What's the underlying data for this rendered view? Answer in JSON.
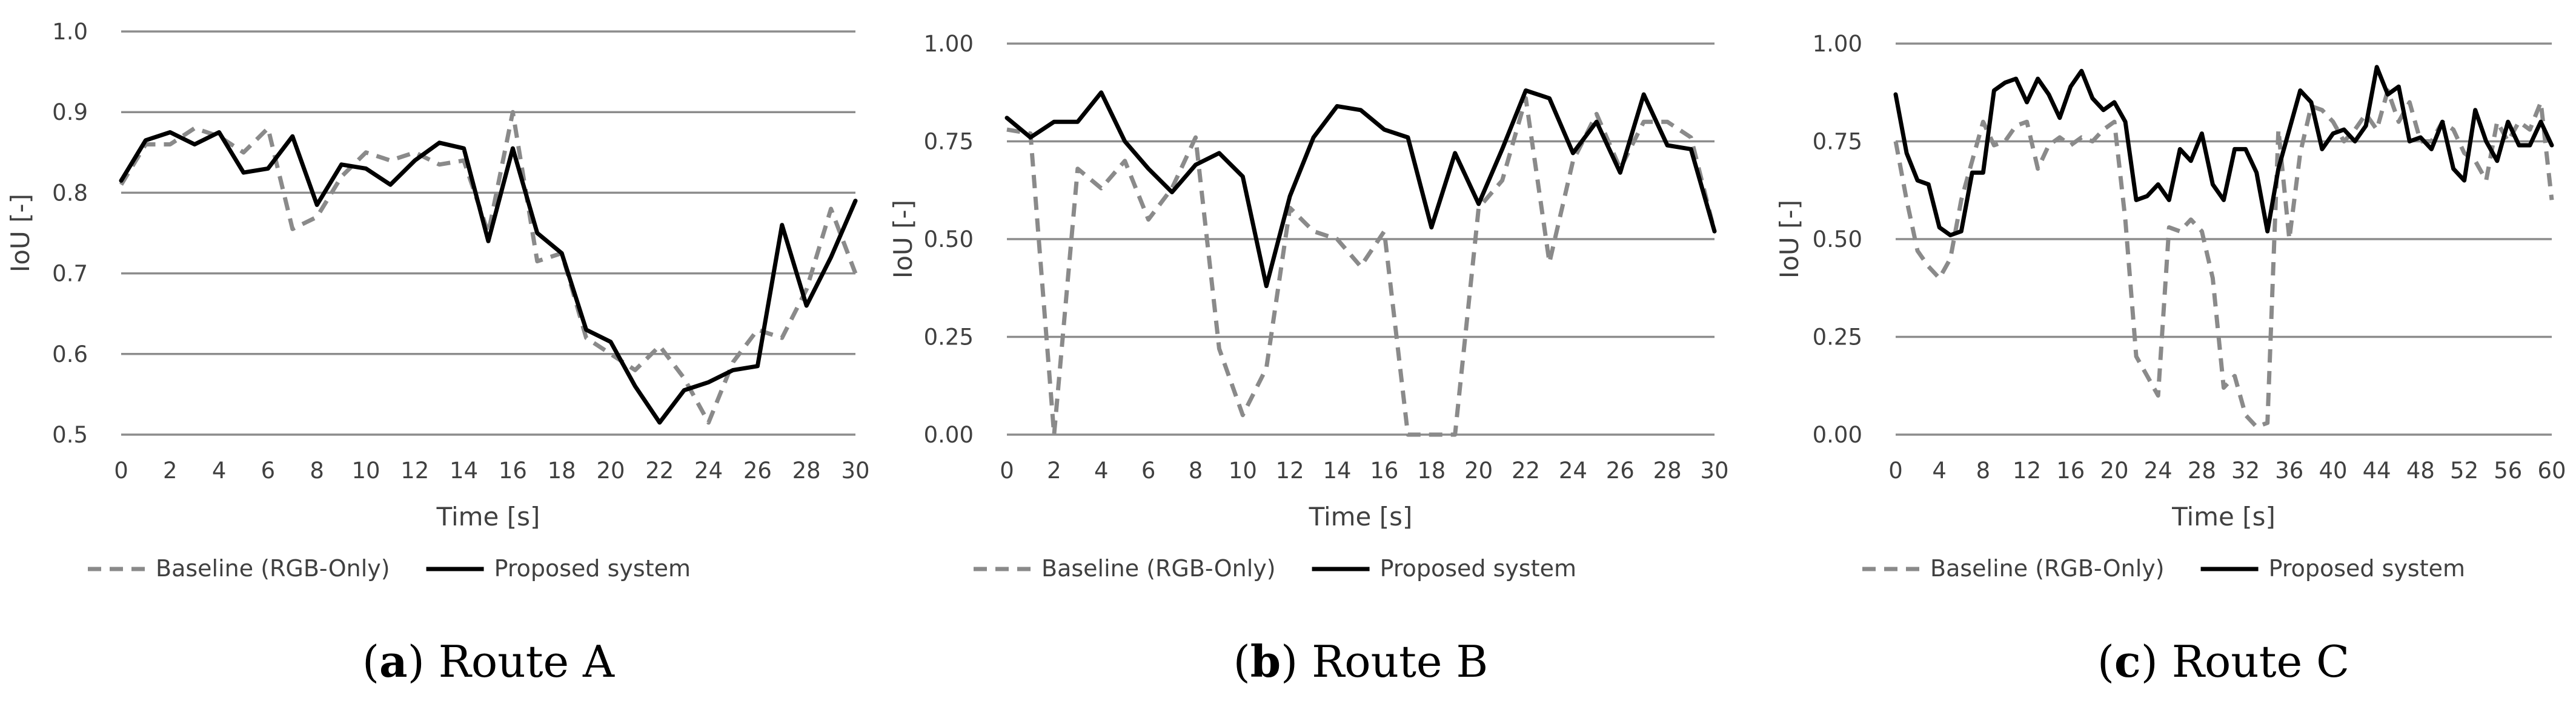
{
  "colors": {
    "baseline": "#8a8a8a",
    "proposed": "#000000",
    "grid": "#8c8c8c",
    "text": "#404040"
  },
  "chart_data": [
    {
      "type": "line",
      "caption_letter": "a",
      "caption_text": ") Route A",
      "caption_open": "(",
      "xlabel": "Time [s]",
      "ylabel": "IoU [-]",
      "xlim": [
        0,
        30
      ],
      "ylim": [
        0.5,
        1.0
      ],
      "yticks": [
        "0.5",
        "0.6",
        "0.7",
        "0.8",
        "0.9",
        "1.0"
      ],
      "ytick_values": [
        0.5,
        0.6,
        0.7,
        0.8,
        0.9,
        1.0
      ],
      "xticks": [
        "0",
        "2",
        "4",
        "6",
        "8",
        "10",
        "12",
        "14",
        "16",
        "18",
        "20",
        "22",
        "24",
        "26",
        "28",
        "30"
      ],
      "xtick_values": [
        0,
        2,
        4,
        6,
        8,
        10,
        12,
        14,
        16,
        18,
        20,
        22,
        24,
        26,
        28,
        30
      ],
      "grid": true,
      "legend_position": "bottom",
      "x": [
        0,
        1,
        2,
        3,
        4,
        5,
        6,
        7,
        8,
        9,
        10,
        11,
        12,
        13,
        14,
        15,
        16,
        17,
        18,
        19,
        20,
        21,
        22,
        23,
        24,
        25,
        26,
        27,
        28,
        29,
        30
      ],
      "series": [
        {
          "name": "Baseline (RGB-Only)",
          "style": "dashed",
          "values": [
            0.81,
            0.86,
            0.86,
            0.88,
            0.87,
            0.85,
            0.88,
            0.755,
            0.77,
            0.82,
            0.85,
            0.84,
            0.85,
            0.835,
            0.84,
            0.75,
            0.9,
            0.715,
            0.725,
            0.62,
            0.6,
            0.58,
            0.61,
            0.57,
            0.515,
            0.59,
            0.63,
            0.62,
            0.68,
            0.78,
            0.7
          ]
        },
        {
          "name": "Proposed system",
          "style": "solid",
          "values": [
            0.815,
            0.865,
            0.875,
            0.86,
            0.875,
            0.825,
            0.83,
            0.87,
            0.785,
            0.835,
            0.83,
            0.81,
            0.84,
            0.862,
            0.855,
            0.74,
            0.855,
            0.75,
            0.725,
            0.63,
            0.615,
            0.56,
            0.515,
            0.555,
            0.565,
            0.58,
            0.585,
            0.76,
            0.66,
            0.72,
            0.79
          ]
        }
      ]
    },
    {
      "type": "line",
      "caption_letter": "b",
      "caption_text": ") Route B",
      "caption_open": "(",
      "xlabel": "Time [s]",
      "ylabel": "IoU [-]",
      "xlim": [
        0,
        30
      ],
      "ylim": [
        0,
        1.0
      ],
      "yticks": [
        "0.00",
        "0.25",
        "0.50",
        "0.75",
        "1.00"
      ],
      "ytick_values": [
        0,
        0.25,
        0.5,
        0.75,
        1.0
      ],
      "xticks": [
        "0",
        "2",
        "4",
        "6",
        "8",
        "10",
        "12",
        "14",
        "16",
        "18",
        "20",
        "22",
        "24",
        "26",
        "28",
        "30"
      ],
      "xtick_values": [
        0,
        2,
        4,
        6,
        8,
        10,
        12,
        14,
        16,
        18,
        20,
        22,
        24,
        26,
        28,
        30
      ],
      "grid": true,
      "legend_position": "bottom",
      "x": [
        0,
        1,
        2,
        3,
        4,
        5,
        6,
        7,
        8,
        9,
        10,
        11,
        12,
        13,
        14,
        15,
        16,
        17,
        18,
        19,
        20,
        21,
        22,
        23,
        24,
        25,
        26,
        27,
        28,
        29,
        30
      ],
      "series": [
        {
          "name": "Baseline (RGB-Only)",
          "style": "dashed",
          "values": [
            0.78,
            0.77,
            0.0,
            0.68,
            0.63,
            0.7,
            0.55,
            0.63,
            0.76,
            0.22,
            0.05,
            0.17,
            0.58,
            0.52,
            0.5,
            0.43,
            0.52,
            0.0,
            0.0,
            0.0,
            0.58,
            0.65,
            0.86,
            0.44,
            0.7,
            0.82,
            0.68,
            0.8,
            0.8,
            0.76,
            0.52
          ]
        },
        {
          "name": "Proposed system",
          "style": "solid",
          "values": [
            0.81,
            0.76,
            0.8,
            0.8,
            0.875,
            0.75,
            0.68,
            0.62,
            0.69,
            0.72,
            0.66,
            0.38,
            0.61,
            0.76,
            0.84,
            0.83,
            0.78,
            0.76,
            0.53,
            0.72,
            0.59,
            0.73,
            0.88,
            0.86,
            0.72,
            0.8,
            0.67,
            0.87,
            0.74,
            0.73,
            0.52
          ]
        }
      ]
    },
    {
      "type": "line",
      "caption_letter": "c",
      "caption_text": ") Route C",
      "caption_open": "(",
      "xlabel": "Time [s]",
      "ylabel": "IoU [-]",
      "xlim": [
        0,
        60
      ],
      "ylim": [
        0,
        1.0
      ],
      "yticks": [
        "0.00",
        "0.25",
        "0.50",
        "0.75",
        "1.00"
      ],
      "ytick_values": [
        0,
        0.25,
        0.5,
        0.75,
        1.0
      ],
      "xticks": [
        "0",
        "4",
        "8",
        "12",
        "16",
        "20",
        "24",
        "28",
        "32",
        "36",
        "40",
        "44",
        "48",
        "52",
        "56",
        "60"
      ],
      "xtick_values": [
        0,
        4,
        8,
        12,
        16,
        20,
        24,
        28,
        32,
        36,
        40,
        44,
        48,
        52,
        56,
        60
      ],
      "grid": true,
      "legend_position": "bottom",
      "x": [
        0,
        1,
        2,
        3,
        4,
        5,
        6,
        7,
        8,
        9,
        10,
        11,
        12,
        13,
        14,
        15,
        16,
        17,
        18,
        19,
        20,
        21,
        22,
        23,
        24,
        25,
        26,
        27,
        28,
        29,
        30,
        31,
        32,
        33,
        34,
        35,
        36,
        37,
        38,
        39,
        40,
        41,
        42,
        43,
        44,
        45,
        46,
        47,
        48,
        49,
        50,
        51,
        52,
        53,
        54,
        55,
        56,
        57,
        58,
        59,
        60
      ],
      "series": [
        {
          "name": "Baseline (RGB-Only)",
          "style": "dashed",
          "values": [
            0.75,
            0.6,
            0.47,
            0.43,
            0.4,
            0.45,
            0.6,
            0.7,
            0.8,
            0.74,
            0.75,
            0.79,
            0.8,
            0.68,
            0.74,
            0.76,
            0.74,
            0.76,
            0.75,
            0.78,
            0.8,
            0.55,
            0.2,
            0.15,
            0.1,
            0.53,
            0.52,
            0.55,
            0.52,
            0.4,
            0.12,
            0.15,
            0.05,
            0.02,
            0.03,
            0.78,
            0.5,
            0.72,
            0.84,
            0.83,
            0.8,
            0.75,
            0.78,
            0.82,
            0.78,
            0.88,
            0.8,
            0.85,
            0.75,
            0.75,
            0.8,
            0.78,
            0.72,
            0.7,
            0.65,
            0.8,
            0.75,
            0.8,
            0.78,
            0.85,
            0.6
          ]
        },
        {
          "name": "Proposed system",
          "style": "solid",
          "values": [
            0.87,
            0.72,
            0.65,
            0.64,
            0.53,
            0.51,
            0.52,
            0.67,
            0.67,
            0.88,
            0.9,
            0.91,
            0.85,
            0.91,
            0.87,
            0.81,
            0.89,
            0.93,
            0.86,
            0.83,
            0.85,
            0.8,
            0.6,
            0.61,
            0.64,
            0.6,
            0.73,
            0.7,
            0.77,
            0.64,
            0.6,
            0.73,
            0.73,
            0.67,
            0.52,
            0.68,
            0.78,
            0.88,
            0.85,
            0.73,
            0.77,
            0.78,
            0.75,
            0.79,
            0.94,
            0.87,
            0.89,
            0.75,
            0.76,
            0.73,
            0.8,
            0.68,
            0.65,
            0.83,
            0.75,
            0.7,
            0.8,
            0.74,
            0.74,
            0.8,
            0.74
          ]
        }
      ]
    }
  ]
}
